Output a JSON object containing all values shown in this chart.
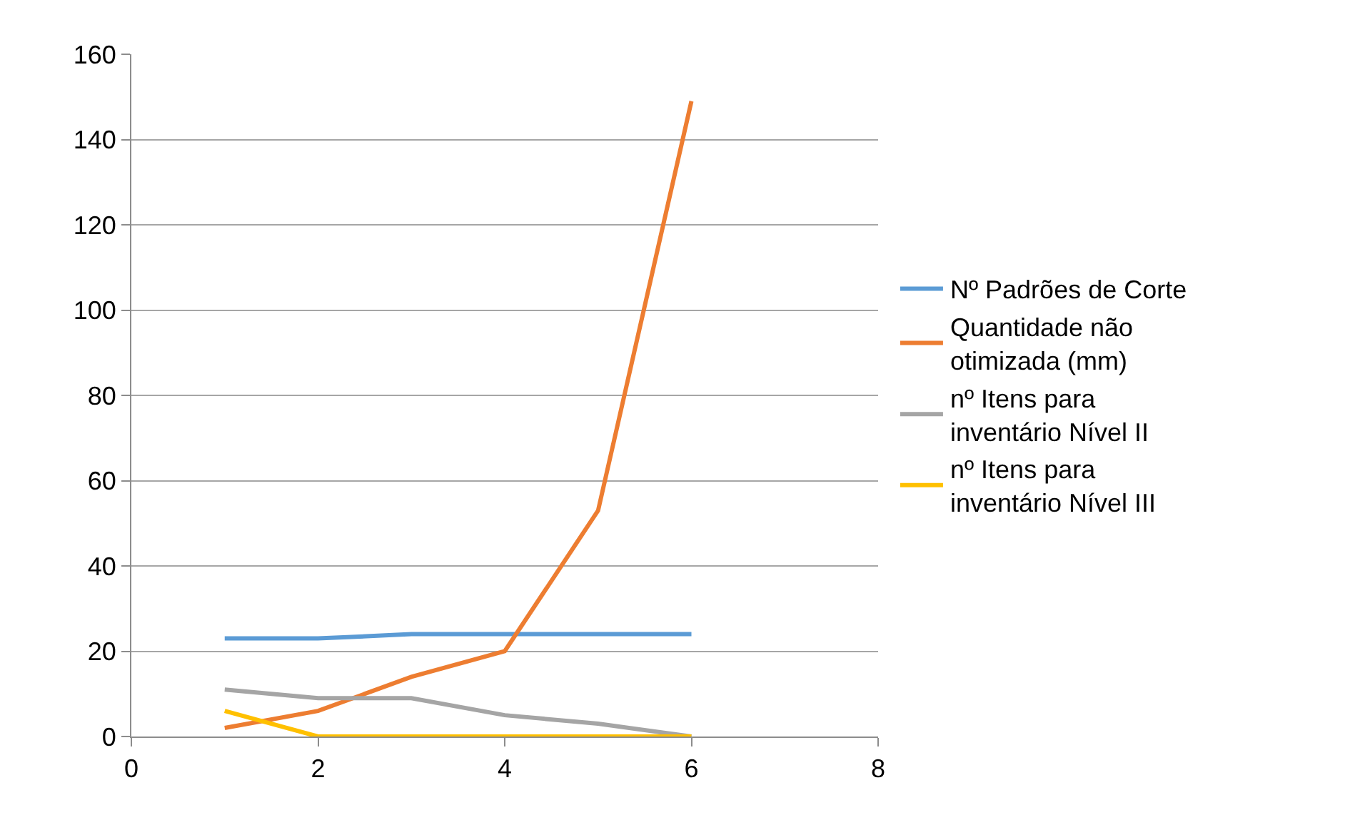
{
  "chart_data": {
    "type": "line",
    "x": [
      1,
      2,
      3,
      4,
      5,
      6
    ],
    "series": [
      {
        "name": "Nº Padrões de Corte",
        "color": "#5b9bd5",
        "values": [
          23,
          23,
          24,
          24,
          24,
          24
        ]
      },
      {
        "name": "Quantidade não otimizada (mm)",
        "color": "#ed7d31",
        "values": [
          2,
          6,
          14,
          20,
          53,
          149
        ]
      },
      {
        "name": "nº Itens para inventário Nível II",
        "color": "#a5a5a5",
        "values": [
          11,
          9,
          9,
          5,
          3,
          0
        ]
      },
      {
        "name": "nº Itens para inventário Nível III",
        "color": "#ffc000",
        "values": [
          6,
          0,
          0,
          0,
          0,
          0
        ]
      }
    ],
    "xlim": [
      0,
      8
    ],
    "xticks": [
      0,
      2,
      4,
      6,
      8
    ],
    "ylim": [
      0,
      160
    ],
    "yticks": [
      0,
      20,
      40,
      60,
      80,
      100,
      120,
      140,
      160
    ],
    "grid": "y",
    "legend": "right",
    "marker": "none",
    "line_style": "solid"
  }
}
